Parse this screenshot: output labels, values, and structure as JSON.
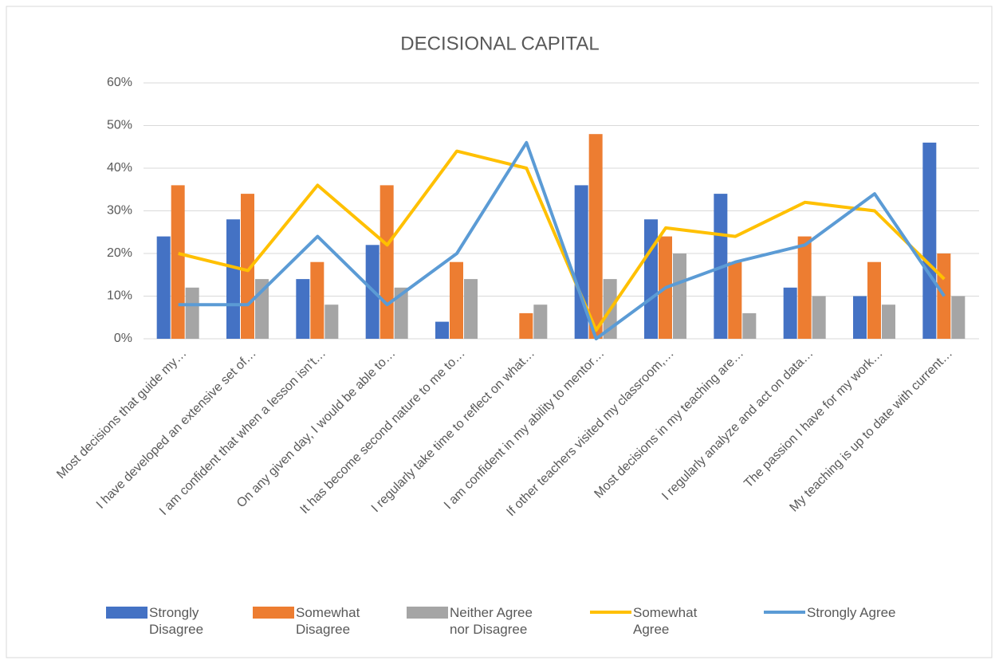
{
  "chart_data": {
    "type": "bar-line",
    "title": "DECISIONAL CAPITAL",
    "categories": [
      "Most decisions that guide my…",
      "I have developed an extensive set of…",
      "I am confident that when a lesson isn’t…",
      "On any given day, I would be able to…",
      "It has become second nature to me to…",
      "I regularly take time to reflect on what…",
      "I am confident in my ability to mentor…",
      "If other teachers visited my classroom,…",
      "Most decisions in my teaching are…",
      "I regularly analyze and act on data…",
      "The passion I have for my work…",
      "My teaching is up to date with current…"
    ],
    "series": [
      {
        "name": "Strongly Disagree",
        "type": "bar",
        "color": "#4472c4",
        "values": [
          24,
          28,
          14,
          22,
          4,
          0,
          36,
          28,
          34,
          12,
          10,
          46
        ]
      },
      {
        "name": "Somewhat Disagree",
        "type": "bar",
        "color": "#ed7d31",
        "values": [
          36,
          34,
          18,
          36,
          18,
          6,
          48,
          24,
          18,
          24,
          18,
          20
        ]
      },
      {
        "name": "Neither Agree nor Disagree",
        "type": "bar",
        "color": "#a5a5a5",
        "values": [
          12,
          14,
          8,
          12,
          14,
          8,
          14,
          20,
          6,
          10,
          8,
          10
        ]
      },
      {
        "name": "Somewhat Agree",
        "type": "line",
        "color": "#ffc000",
        "values": [
          20,
          16,
          36,
          22,
          44,
          40,
          2,
          26,
          24,
          32,
          30,
          14
        ]
      },
      {
        "name": "Strongly Agree",
        "type": "line",
        "color": "#5b9bd5",
        "values": [
          8,
          8,
          24,
          8,
          20,
          46,
          0,
          12,
          18,
          22,
          34,
          10
        ]
      }
    ],
    "ylim": [
      0,
      60
    ],
    "yticks": [
      {
        "value": 0,
        "label": "0%"
      },
      {
        "value": 10,
        "label": "10%"
      },
      {
        "value": 20,
        "label": "20%"
      },
      {
        "value": 30,
        "label": "30%"
      },
      {
        "value": 40,
        "label": "40%"
      },
      {
        "value": 50,
        "label": "50%"
      },
      {
        "value": 60,
        "label": "60%"
      }
    ],
    "grid": true,
    "legend": "bottom"
  }
}
